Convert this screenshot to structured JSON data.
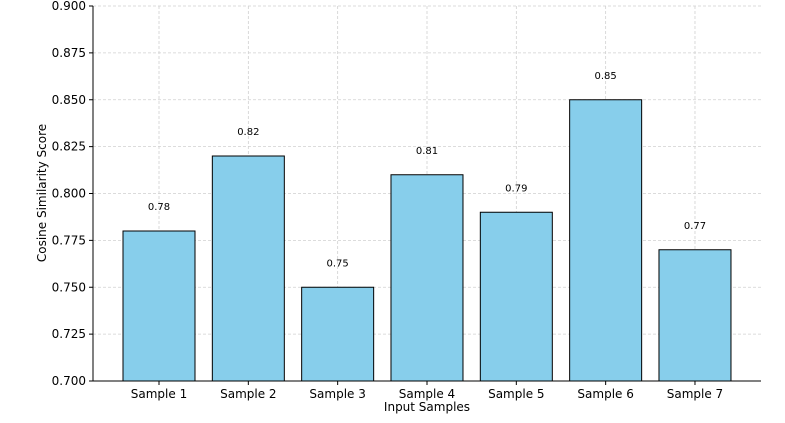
{
  "chart_data": {
    "type": "bar",
    "title": "",
    "xlabel": "Input Samples",
    "ylabel": "Cosine Similarity Score",
    "categories": [
      "Sample 1",
      "Sample 2",
      "Sample 3",
      "Sample 4",
      "Sample 5",
      "Sample 6",
      "Sample 7"
    ],
    "values": [
      0.78,
      0.82,
      0.75,
      0.81,
      0.79,
      0.85,
      0.77
    ],
    "data_labels": [
      "0.78",
      "0.82",
      "0.75",
      "0.81",
      "0.79",
      "0.85",
      "0.77"
    ],
    "ylim": [
      0.7,
      0.9
    ],
    "yticks": [
      "0.700",
      "0.725",
      "0.750",
      "0.775",
      "0.800",
      "0.825",
      "0.850",
      "0.875",
      "0.900"
    ],
    "grid": true,
    "bar_color": "#87ceeb",
    "edge_color": "#000000"
  }
}
